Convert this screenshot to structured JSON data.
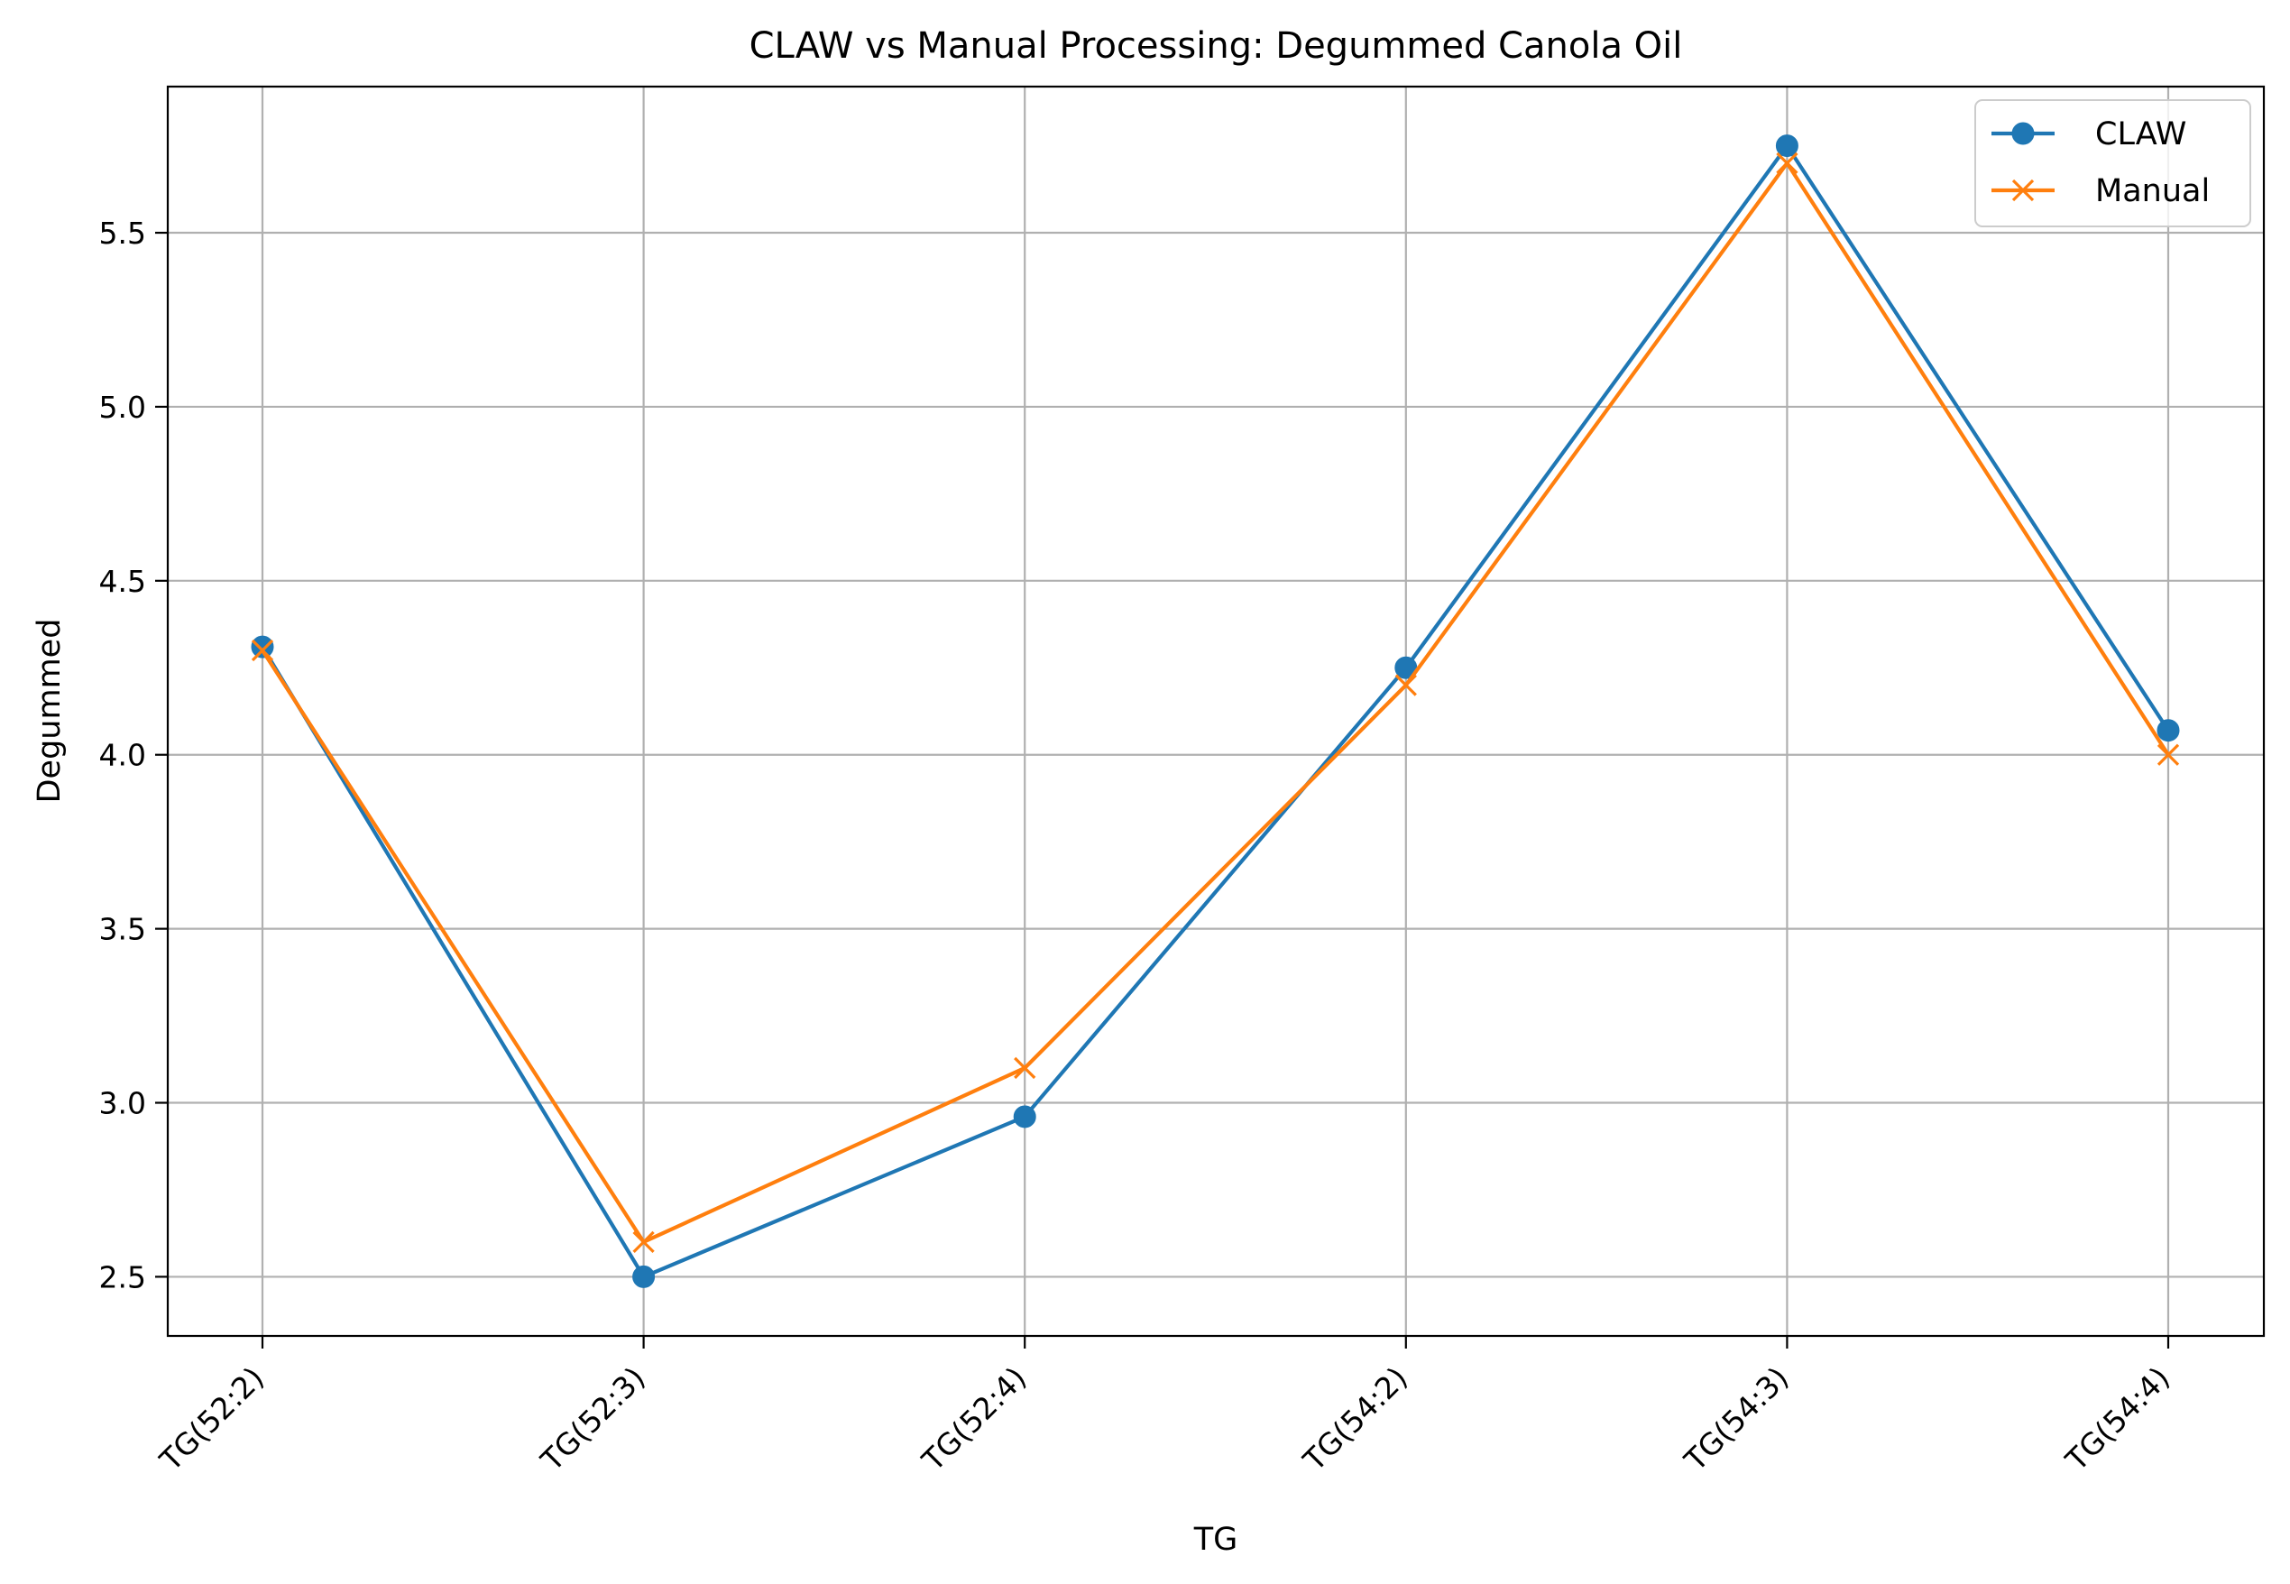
{
  "chart_data": {
    "type": "line",
    "title": "CLAW vs Manual Processing: Degummed Canola Oil",
    "xlabel": "TG",
    "ylabel": "Degummed",
    "categories": [
      "TG(52:2)",
      "TG(52:3)",
      "TG(52:4)",
      "TG(54:2)",
      "TG(54:3)",
      "TG(54:4)"
    ],
    "yticks": [
      "2.5",
      "3.0",
      "3.5",
      "4.0",
      "4.5",
      "5.0",
      "5.5"
    ],
    "ylim": [
      2.33,
      5.92
    ],
    "grid": true,
    "legend_position": "top-right",
    "series": [
      {
        "name": "CLAW",
        "values": [
          4.31,
          2.5,
          2.96,
          4.25,
          5.75,
          4.07
        ],
        "color": "#1f77b4",
        "marker": "circle"
      },
      {
        "name": "Manual",
        "values": [
          4.3,
          2.6,
          3.1,
          4.2,
          5.7,
          4.0
        ],
        "color": "#ff7f0e",
        "marker": "x"
      }
    ]
  }
}
